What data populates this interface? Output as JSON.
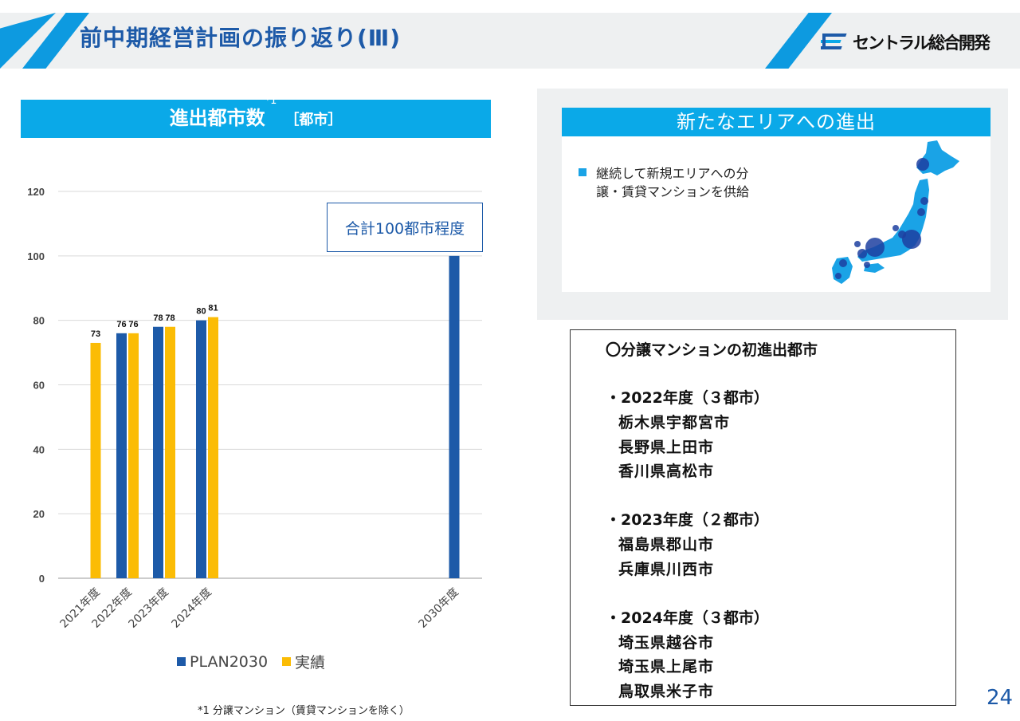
{
  "header": {
    "title": "前中期経営計画の振り返り(Ⅲ)",
    "logo_text": "セントラル総合開発"
  },
  "chart_section": {
    "title": "進出都市数",
    "title_sup": "*1",
    "unit": "［都市］",
    "total_box": "合計100都市程度",
    "footnote": "*1 分譲マンション（賃貸マンションを除く）"
  },
  "chart_data": {
    "type": "bar",
    "categories": [
      "2021年度",
      "2022年度",
      "2023年度",
      "2024年度",
      "2030年度"
    ],
    "series": [
      {
        "name": "PLAN2030",
        "color": "#1d5aa8",
        "values": [
          null,
          76,
          78,
          80,
          100
        ],
        "labels": [
          "",
          "76",
          "78",
          "80",
          ""
        ]
      },
      {
        "name": "実績",
        "color": "#fbbc05",
        "values": [
          73,
          76,
          78,
          81,
          null
        ],
        "labels": [
          "73",
          "76",
          "78",
          "81",
          ""
        ]
      }
    ],
    "yticks": [
      "0",
      "20",
      "40",
      "60",
      "80",
      "100",
      "120"
    ],
    "ylim": [
      0,
      120
    ],
    "grid": true,
    "legend_position": "bottom"
  },
  "area_panel": {
    "title": "新たなエリアへの進出",
    "bullet": "継続して新規エリアへの分譲・賃貸マンションを供給"
  },
  "city_list": {
    "title": "〇分譲マンションの初進出都市",
    "groups": [
      {
        "year": "・2022年度（３都市）",
        "cities": [
          "栃木県宇都宮市",
          "長野県上田市",
          "香川県高松市"
        ]
      },
      {
        "year": "・2023年度（２都市）",
        "cities": [
          "福島県郡山市",
          "兵庫県川西市"
        ]
      },
      {
        "year": "・2024年度（３都市）",
        "cities": [
          "埼玉県越谷市",
          "埼玉県上尾市",
          "鳥取県米子市"
        ]
      }
    ]
  },
  "page_number": "24"
}
